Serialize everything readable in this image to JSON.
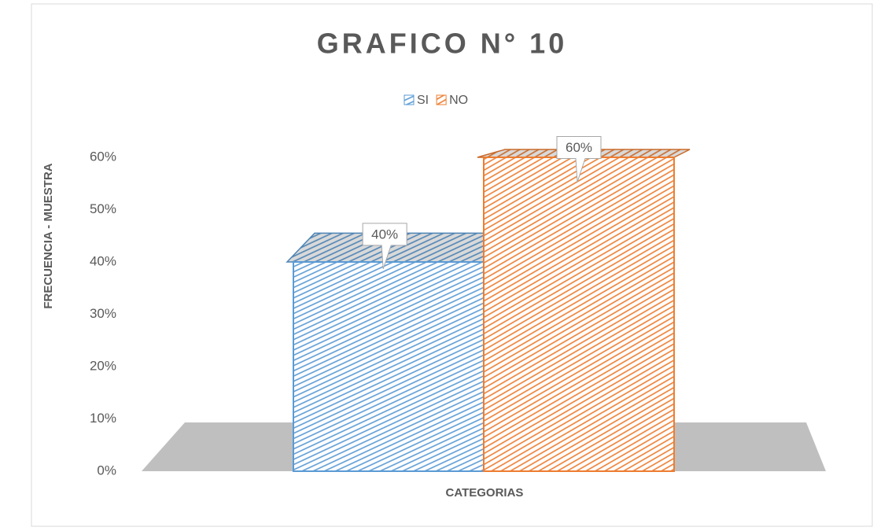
{
  "chart_data": {
    "type": "bar3d",
    "title": "GRAFICO N° 10",
    "x_label": "CATEGORIAS",
    "y_label": "FRECUENCIA - MUESTRA",
    "categories": [
      null
    ],
    "series": [
      {
        "name": "SI",
        "color": "#5b9bd5",
        "values": [
          40
        ],
        "value_labels": [
          "40%"
        ]
      },
      {
        "name": "NO",
        "color": "#ed7d31",
        "values": [
          60
        ],
        "value_labels": [
          "60%"
        ]
      }
    ],
    "ylim": [
      0,
      60
    ],
    "yticks": [
      {
        "value": 0,
        "label": "0%"
      },
      {
        "value": 10,
        "label": "10%"
      },
      {
        "value": 20,
        "label": "20%"
      },
      {
        "value": 30,
        "label": "30%"
      },
      {
        "value": 40,
        "label": "40%"
      },
      {
        "value": 50,
        "label": "50%"
      },
      {
        "value": 60,
        "label": "60%"
      }
    ],
    "legend": "top"
  }
}
